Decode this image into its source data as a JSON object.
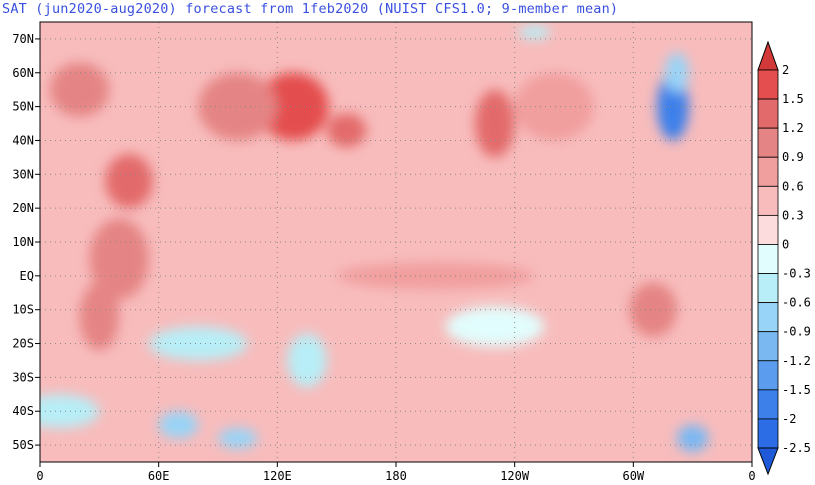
{
  "title": "SAT (jun2020-aug2020) forecast from 1feb2020 (NUIST CFS1.0; 9-member mean)",
  "map": {
    "lon_range": [
      0,
      360
    ],
    "lat_range": [
      -55,
      75
    ],
    "background_value": 0.3,
    "x_ticks": [
      {
        "lon": 0,
        "label": "0"
      },
      {
        "lon": 60,
        "label": "60E"
      },
      {
        "lon": 120,
        "label": "120E"
      },
      {
        "lon": 180,
        "label": "180"
      },
      {
        "lon": 240,
        "label": "120W"
      },
      {
        "lon": 300,
        "label": "60W"
      },
      {
        "lon": 360,
        "label": "0"
      }
    ],
    "y_ticks": [
      {
        "lat": 70,
        "label": "70N"
      },
      {
        "lat": 60,
        "label": "60N"
      },
      {
        "lat": 50,
        "label": "50N"
      },
      {
        "lat": 40,
        "label": "40N"
      },
      {
        "lat": 30,
        "label": "30N"
      },
      {
        "lat": 20,
        "label": "20N"
      },
      {
        "lat": 10,
        "label": "10N"
      },
      {
        "lat": 0,
        "label": "EQ"
      },
      {
        "lat": -10,
        "label": "10S"
      },
      {
        "lat": -20,
        "label": "20S"
      },
      {
        "lat": -30,
        "label": "30S"
      },
      {
        "lat": -40,
        "label": "40S"
      },
      {
        "lat": -50,
        "label": "50S"
      }
    ],
    "anomaly_regions": [
      {
        "lon": 128,
        "lat": 50,
        "rlon": 18,
        "rlat": 10,
        "value": 1.6
      },
      {
        "lon": 155,
        "lat": 43,
        "rlon": 10,
        "rlat": 5,
        "value": 1.4
      },
      {
        "lon": 230,
        "lat": 45,
        "rlon": 10,
        "rlat": 10,
        "value": 1.2
      },
      {
        "lon": 45,
        "lat": 28,
        "rlon": 12,
        "rlat": 8,
        "value": 1.2
      },
      {
        "lon": 40,
        "lat": 5,
        "rlon": 15,
        "rlat": 12,
        "value": 1.0
      },
      {
        "lon": 30,
        "lat": -12,
        "rlon": 10,
        "rlat": 10,
        "value": 0.9
      },
      {
        "lon": 100,
        "lat": 50,
        "rlon": 20,
        "rlat": 10,
        "value": 0.9
      },
      {
        "lon": 20,
        "lat": 55,
        "rlon": 15,
        "rlat": 8,
        "value": 0.9
      },
      {
        "lon": 310,
        "lat": -10,
        "rlon": 12,
        "rlat": 8,
        "value": 0.9
      },
      {
        "lon": 260,
        "lat": 50,
        "rlon": 20,
        "rlat": 10,
        "value": 0.8
      },
      {
        "lon": 200,
        "lat": 0,
        "rlon": 50,
        "rlat": 4,
        "value": 0.6
      },
      {
        "lon": 320,
        "lat": 50,
        "rlon": 8,
        "rlat": 10,
        "value": -1.8
      },
      {
        "lon": 322,
        "lat": 60,
        "rlon": 6,
        "rlat": 6,
        "value": -0.9
      },
      {
        "lon": 80,
        "lat": -20,
        "rlon": 25,
        "rlat": 5,
        "value": -0.5
      },
      {
        "lon": 70,
        "lat": -44,
        "rlon": 10,
        "rlat": 4,
        "value": -0.9
      },
      {
        "lon": 100,
        "lat": -48,
        "rlon": 10,
        "rlat": 3,
        "value": -0.9
      },
      {
        "lon": 135,
        "lat": -25,
        "rlon": 10,
        "rlat": 8,
        "value": -0.4
      },
      {
        "lon": 230,
        "lat": -15,
        "rlon": 25,
        "rlat": 6,
        "value": -0.3
      },
      {
        "lon": 330,
        "lat": -48,
        "rlon": 8,
        "rlat": 4,
        "value": -1.2
      },
      {
        "lon": 10,
        "lat": -40,
        "rlon": 20,
        "rlat": 5,
        "value": -0.4
      },
      {
        "lon": 250,
        "lat": 72,
        "rlon": 8,
        "rlat": 2,
        "value": -0.6
      }
    ]
  },
  "colorbar": {
    "levels": [
      "2",
      "1.5",
      "1.2",
      "0.9",
      "0.6",
      "0.3",
      "0",
      "-0.3",
      "-0.6",
      "-0.9",
      "-1.2",
      "-1.5",
      "-2",
      "-2.5"
    ],
    "colors": [
      "#d23a3a",
      "#e44e4e",
      "#e36a6a",
      "#e58484",
      "#f19e9e",
      "#f8bcbc",
      "#fcdcdc",
      "#e2fdfd",
      "#b8eef7",
      "#98d4f7",
      "#7ab8f2",
      "#5c9cee",
      "#3e80ea",
      "#2c6ce4",
      "#1e5ad8"
    ]
  }
}
